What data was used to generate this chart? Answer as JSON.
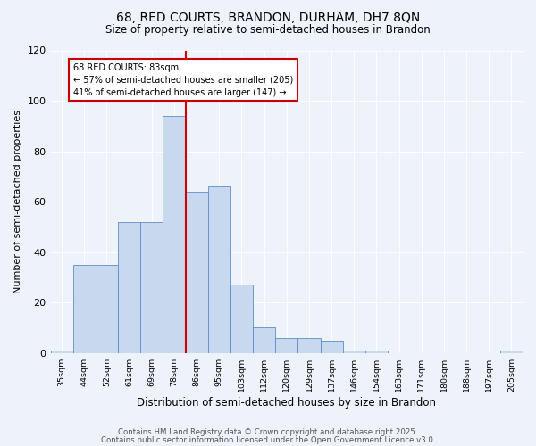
{
  "title_line1": "68, RED COURTS, BRANDON, DURHAM, DH7 8QN",
  "title_line2": "Size of property relative to semi-detached houses in Brandon",
  "xlabel": "Distribution of semi-detached houses by size in Brandon",
  "ylabel": "Number of semi-detached properties",
  "categories": [
    "35sqm",
    "44sqm",
    "52sqm",
    "61sqm",
    "69sqm",
    "78sqm",
    "86sqm",
    "95sqm",
    "103sqm",
    "112sqm",
    "120sqm",
    "129sqm",
    "137sqm",
    "146sqm",
    "154sqm",
    "163sqm",
    "171sqm",
    "180sqm",
    "188sqm",
    "197sqm",
    "205sqm"
  ],
  "values": [
    1,
    35,
    35,
    52,
    52,
    94,
    64,
    66,
    27,
    10,
    6,
    6,
    5,
    1,
    1,
    0,
    0,
    0,
    0,
    0,
    1
  ],
  "bar_color": "#c8d8ee",
  "bar_edge_color": "#5b8dc8",
  "vline_color": "#cc0000",
  "annotation_text": "68 RED COURTS: 83sqm\n← 57% of semi-detached houses are smaller (205)\n41% of semi-detached houses are larger (147) →",
  "annotation_box_color": "#ffffff",
  "annotation_box_edge": "#cc0000",
  "ylim": [
    0,
    120
  ],
  "yticks": [
    0,
    20,
    40,
    60,
    80,
    100,
    120
  ],
  "footer_line1": "Contains HM Land Registry data © Crown copyright and database right 2025.",
  "footer_line2": "Contains public sector information licensed under the Open Government Licence v3.0.",
  "background_color": "#eef2fb"
}
